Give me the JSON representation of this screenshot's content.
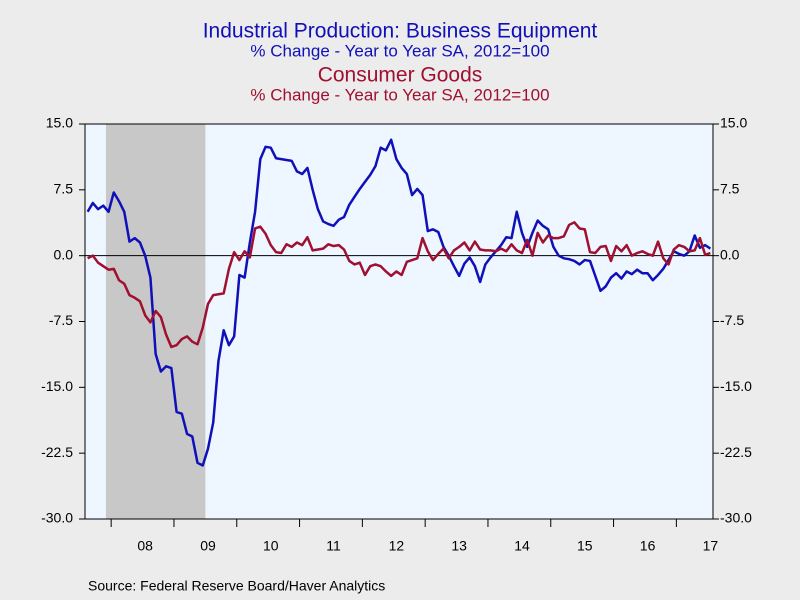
{
  "chart_data": {
    "type": "line",
    "titles": [
      {
        "text": "Industrial Production: Business Equipment",
        "subtitle": "% Change - Year to Year    SA, 2012=100",
        "color": "#1010b8"
      },
      {
        "text": "Consumer Goods",
        "subtitle": "% Change - Year to Year    SA, 2012=100",
        "color": "#a01030"
      }
    ],
    "source": "Source:  Federal Reserve Board/Haver Analytics",
    "categories": [
      null,
      null,
      null,
      null,
      null,
      null,
      null,
      null,
      null,
      null,
      null,
      "08",
      null,
      null,
      null,
      null,
      null,
      null,
      null,
      null,
      null,
      null,
      null,
      "09",
      null,
      null,
      null,
      null,
      null,
      null,
      null,
      null,
      null,
      null,
      null,
      "10",
      null,
      null,
      null,
      null,
      null,
      null,
      null,
      null,
      null,
      null,
      null,
      "11",
      null,
      null,
      null,
      null,
      null,
      null,
      null,
      null,
      null,
      null,
      null,
      "12",
      null,
      null,
      null,
      null,
      null,
      null,
      null,
      null,
      null,
      null,
      null,
      "13",
      null,
      null,
      null,
      null,
      null,
      null,
      null,
      null,
      null,
      null,
      null,
      "14",
      null,
      null,
      null,
      null,
      null,
      null,
      null,
      null,
      null,
      null,
      null,
      "15",
      null,
      null,
      null,
      null,
      null,
      null,
      null,
      null,
      null,
      null,
      null,
      "16",
      null,
      null,
      null,
      null,
      null,
      null,
      null,
      null,
      null,
      null,
      null,
      "17"
    ],
    "series": [
      {
        "name": "Industrial Production: Business Equipment",
        "color": "#1010b8",
        "values": [
          5.0,
          6.0,
          5.3,
          5.7,
          5.0,
          7.2,
          6.2,
          5.0,
          1.6,
          2.0,
          1.5,
          0.0,
          -2.5,
          -11.2,
          -13.2,
          -12.6,
          -12.8,
          -17.8,
          -18.0,
          -20.3,
          -20.6,
          -23.6,
          -23.9,
          -22.0,
          -19.0,
          -12.0,
          -8.5,
          -10.2,
          -9.2,
          -2.2,
          -2.5,
          1.5,
          5.0,
          11.0,
          12.4,
          12.3,
          11.1,
          11.0,
          10.9,
          10.8,
          9.6,
          9.3,
          10.0,
          7.5,
          5.3,
          3.9,
          3.6,
          3.4,
          4.1,
          4.4,
          5.8,
          6.7,
          7.6,
          8.4,
          9.2,
          10.2,
          12.3,
          12.0,
          13.2,
          11.0,
          10.0,
          9.3,
          6.9,
          7.6,
          6.9,
          2.8,
          3.0,
          2.7,
          1.0,
          0.0,
          -1.2,
          -2.3,
          -0.9,
          -0.2,
          -1.2,
          -3.0,
          -1.0,
          -0.2,
          0.5,
          1.2,
          2.1,
          2.0,
          5.0,
          2.6,
          1.0,
          2.6,
          4.0,
          3.4,
          3.0,
          1.0,
          0.0,
          -0.3,
          -0.4,
          -0.6,
          -1.0,
          -0.5,
          -0.6,
          -2.3,
          -4.0,
          -3.5,
          -2.5,
          -2.0,
          -2.6,
          -1.8,
          -2.1,
          -1.6,
          -2.0,
          -2.0,
          -2.8,
          -2.2,
          -1.5,
          -0.5,
          0.5,
          0.2,
          0.0,
          0.5,
          2.3,
          0.9,
          1.2,
          0.8
        ]
      },
      {
        "name": "Consumer Goods",
        "color": "#a01030",
        "values": [
          -0.3,
          0.0,
          -0.8,
          -1.2,
          -1.6,
          -1.5,
          -2.8,
          -3.2,
          -4.5,
          -4.8,
          -5.2,
          -6.8,
          -7.6,
          -6.3,
          -7.0,
          -9.0,
          -10.4,
          -10.2,
          -9.5,
          -9.2,
          -9.8,
          -10.1,
          -8.2,
          -5.5,
          -4.5,
          -4.4,
          -4.3,
          -1.5,
          0.4,
          -0.5,
          0.5,
          -0.2,
          3.1,
          3.3,
          2.5,
          1.2,
          0.4,
          0.3,
          1.3,
          1.0,
          1.5,
          1.2,
          2.1,
          0.6,
          0.7,
          0.8,
          1.3,
          1.1,
          1.2,
          0.7,
          -0.6,
          -1.0,
          -0.8,
          -2.2,
          -1.2,
          -1.0,
          -1.2,
          -1.8,
          -2.3,
          -1.8,
          -2.2,
          -0.7,
          -0.5,
          -0.3,
          2.0,
          0.5,
          -0.5,
          0.2,
          0.8,
          -0.3,
          0.6,
          1.0,
          1.5,
          0.6,
          1.6,
          0.7,
          0.6,
          0.6,
          0.5,
          0.8,
          0.5,
          1.3,
          0.6,
          0.3,
          1.8,
          0.0,
          2.6,
          1.5,
          2.3,
          2.0,
          2.0,
          2.2,
          3.5,
          3.8,
          3.1,
          3.0,
          0.4,
          0.3,
          1.0,
          1.1,
          -0.6,
          1.1,
          0.5,
          1.2,
          0.0,
          0.3,
          0.5,
          0.2,
          0.0,
          1.6,
          -0.3,
          -1.0,
          0.7,
          1.2,
          1.0,
          0.5,
          0.6,
          2.0,
          0.1,
          0.3
        ]
      }
    ],
    "shaded_range": [
      4,
      22
    ],
    "shade_color": "#c8c8c8",
    "ylim": [
      -30,
      15
    ],
    "yticks": [
      {
        "value": -30,
        "label": "-30.0"
      },
      -22.5,
      {
        "value": -15,
        "label": "-15.0"
      },
      -7.5,
      {
        "value": 0,
        "label": "0.0"
      },
      7.5,
      {
        "value": 15,
        "label": "15.0"
      }
    ],
    "y2lim": [
      -30,
      15
    ],
    "y2ticks": [
      {
        "value": -30,
        "label": "-30.0"
      },
      -22.5,
      {
        "value": -15,
        "label": "-15.0"
      },
      -7.5,
      {
        "value": 0,
        "label": "0.0"
      },
      7.5,
      {
        "value": 15,
        "label": "15.0"
      }
    ],
    "grid": false,
    "zero_line": true
  }
}
